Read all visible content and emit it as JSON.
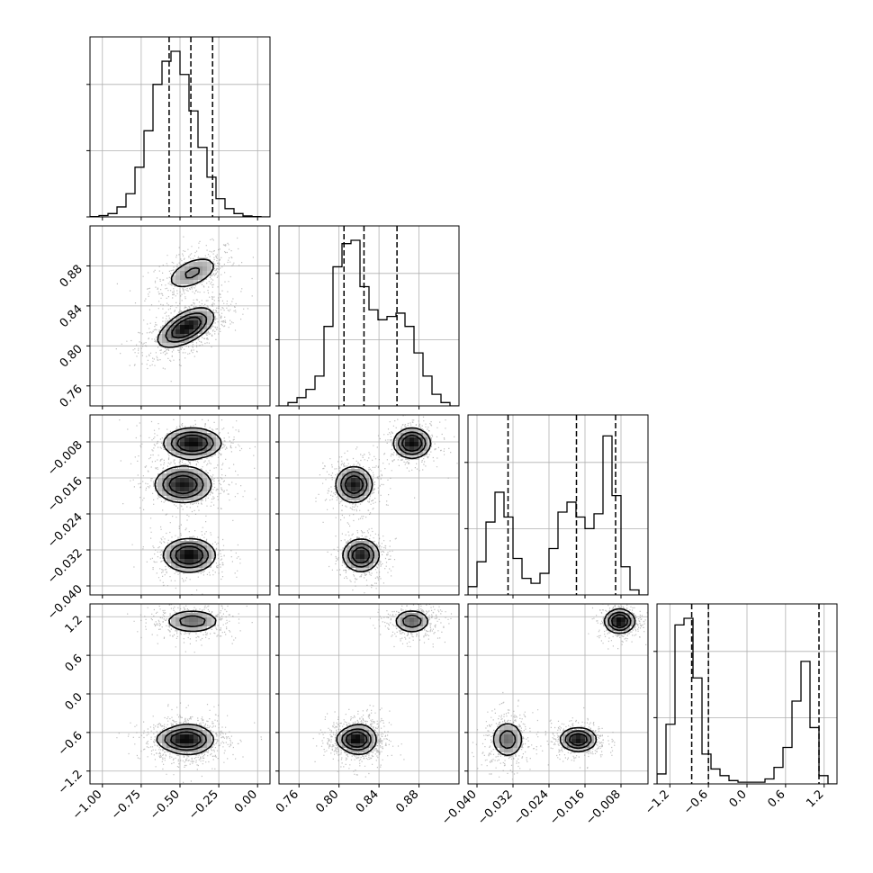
{
  "chart_data": {
    "type": "corner",
    "grid": true,
    "parameters": [
      {
        "index": 0,
        "range": [
          -1.08,
          0.08
        ],
        "ticks": [
          -1.0,
          -0.75,
          -0.5,
          -0.25,
          0.0
        ],
        "tick_labels": [
          "−1.00",
          "−0.75",
          "−0.50",
          "−0.25",
          "0.00"
        ],
        "quantiles": [
          -0.57,
          -0.43,
          -0.29
        ],
        "histogram": [
          0.002,
          0.008,
          0.02,
          0.06,
          0.14,
          0.3,
          0.52,
          0.8,
          0.94,
          1.0,
          0.86,
          0.64,
          0.42,
          0.24,
          0.11,
          0.05,
          0.02,
          0.006,
          0.002,
          0.0
        ]
      },
      {
        "index": 1,
        "range": [
          0.74,
          0.92
        ],
        "ticks": [
          0.76,
          0.8,
          0.84,
          0.88
        ],
        "tick_labels": [
          "0.76",
          "0.80",
          "0.84",
          "0.88"
        ],
        "quantiles": [
          0.805,
          0.825,
          0.858
        ],
        "histogram": [
          0.0,
          0.02,
          0.05,
          0.1,
          0.18,
          0.48,
          0.84,
          0.98,
          1.0,
          0.72,
          0.58,
          0.52,
          0.54,
          0.56,
          0.48,
          0.32,
          0.18,
          0.07,
          0.02,
          0.0
        ]
      },
      {
        "index": 2,
        "range": [
          -0.042,
          -0.002
        ],
        "ticks": [
          -0.04,
          -0.032,
          -0.024,
          -0.016,
          -0.008
        ],
        "tick_labels": [
          "−0.040",
          "−0.032",
          "−0.024",
          "−0.016",
          "−0.008"
        ],
        "quantiles": [
          -0.0331,
          -0.0179,
          -0.0092
        ],
        "histogram": [
          0.05,
          0.2,
          0.44,
          0.62,
          0.47,
          0.22,
          0.1,
          0.07,
          0.13,
          0.28,
          0.5,
          0.56,
          0.47,
          0.4,
          0.49,
          0.96,
          0.6,
          0.17,
          0.03,
          0.0
        ]
      },
      {
        "index": 3,
        "range": [
          -1.4,
          1.4
        ],
        "ticks": [
          -1.2,
          -0.6,
          0.0,
          0.6,
          1.2
        ],
        "tick_labels": [
          "−1.2",
          "−0.6",
          "0.0",
          "0.6",
          "1.2"
        ],
        "quantiles": [
          -0.86,
          -0.6,
          1.12
        ],
        "histogram": [
          0.06,
          0.36,
          0.96,
          1.0,
          0.64,
          0.18,
          0.09,
          0.05,
          0.02,
          0.01,
          0.01,
          0.01,
          0.03,
          0.1,
          0.22,
          0.5,
          0.74,
          0.34,
          0.05,
          0.0
        ]
      }
    ],
    "modes": [
      {
        "weight": 0.32,
        "mean": [
          -0.42,
          0.873,
          -0.0083,
          1.13
        ],
        "sd": [
          0.1,
          0.01,
          0.0018,
          0.1
        ],
        "rho01": 0.5
      },
      {
        "weight": 0.36,
        "mean": [
          -0.48,
          0.815,
          -0.0175,
          -0.71
        ],
        "sd": [
          0.1,
          0.01,
          0.0022,
          0.1
        ],
        "rho01": 0.6
      },
      {
        "weight": 0.32,
        "mean": [
          -0.44,
          0.822,
          -0.0332,
          -0.71
        ],
        "sd": [
          0.09,
          0.01,
          0.002,
          0.16
        ],
        "rho01": 0.5
      }
    ]
  }
}
